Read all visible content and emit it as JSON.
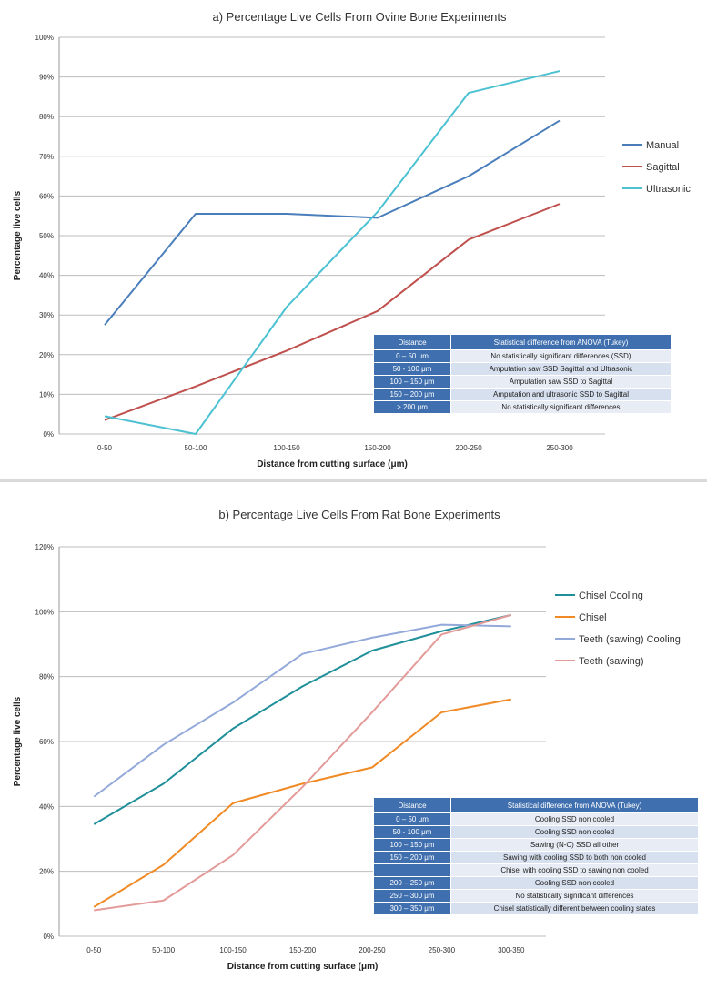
{
  "chart_data": [
    {
      "type": "line",
      "title": "a) Percentage Live Cells From Ovine Bone Experiments",
      "xlabel": "Distance from cutting surface (μm)",
      "ylabel": "Percentage live cells",
      "categories": [
        "0-50",
        "50-100",
        "100-150",
        "150-200",
        "200-250",
        "250-300"
      ],
      "yticks": [
        "0%",
        "10%",
        "20%",
        "30%",
        "40%",
        "50%",
        "60%",
        "70%",
        "80%",
        "90%",
        "100%"
      ],
      "ylim": [
        0,
        100
      ],
      "grid": true,
      "legend_position": "right",
      "series": [
        {
          "name": "Manual",
          "color": "#4a7ebb",
          "values": [
            27.5,
            55.5,
            55.5,
            54.5,
            65,
            79
          ]
        },
        {
          "name": "Sagittal",
          "color": "#c0504d",
          "values": [
            3.5,
            12,
            21,
            31,
            49,
            58
          ]
        },
        {
          "name": "Ultrasonic",
          "color": "#4bc1d2",
          "values": [
            4.5,
            0,
            32,
            56,
            86,
            91.5
          ]
        }
      ],
      "table": {
        "headers": [
          "Distance",
          "Statistical difference from ANOVA (Tukey)"
        ],
        "rows": [
          [
            "0 – 50 μm",
            "No statistically significant differences (SSD)"
          ],
          [
            "50 - 100 μm",
            "Amputation saw SSD Sagittal and Ultrasonic"
          ],
          [
            "100 – 150 μm",
            "Amputation saw SSD to Sagittal"
          ],
          [
            "150 – 200 μm",
            "Amputation and ultrasonic SSD to Sagittal"
          ],
          [
            "> 200 μm",
            "No statistically significant differences"
          ]
        ]
      }
    },
    {
      "type": "line",
      "title": "b) Percentage Live Cells From Rat Bone Experiments",
      "xlabel": "Distance from cutting surface (μm)",
      "ylabel": "Percentage live cells",
      "categories": [
        "0-50",
        "50-100",
        "100-150",
        "150-200",
        "200-250",
        "250-300",
        "300-350"
      ],
      "yticks": [
        "0%",
        "20%",
        "40%",
        "60%",
        "80%",
        "100%",
        "120%"
      ],
      "ylim": [
        0,
        120
      ],
      "grid": true,
      "legend_position": "right",
      "series": [
        {
          "name": "Chisel Cooling",
          "color": "#1f8f9a",
          "values": [
            34.5,
            47,
            64,
            77,
            88,
            94,
            99
          ]
        },
        {
          "name": "Chisel",
          "color": "#f08a24",
          "values": [
            9,
            22,
            41,
            47,
            52,
            69,
            73
          ]
        },
        {
          "name": "Teeth (sawing) Cooling",
          "color": "#93a9da",
          "values": [
            43,
            59,
            72,
            87,
            92,
            96,
            95.5
          ]
        },
        {
          "name": "Teeth (sawing)",
          "color": "#e39b99",
          "values": [
            8,
            11,
            25,
            46,
            69,
            93,
            99
          ]
        }
      ],
      "table": {
        "headers": [
          "Distance",
          "Statistical difference from ANOVA (Tukey)"
        ],
        "rows": [
          [
            "0 – 50 μm",
            "Cooling SSD non cooled"
          ],
          [
            "50 - 100 μm",
            "Cooling SSD non cooled"
          ],
          [
            "100 – 150 μm",
            "Sawing (N-C) SSD all other"
          ],
          [
            "150 – 200 μm",
            "Sawing with cooling SSD to both non cooled"
          ],
          [
            "",
            "Chisel with cooling SSD to sawing non cooled"
          ],
          [
            "200 – 250 μm",
            "Cooling SSD non cooled"
          ],
          [
            "250 – 300 μm",
            "No statistically significant differences"
          ],
          [
            "300 – 350 μm",
            "Chisel statistically different between cooling states"
          ]
        ]
      }
    }
  ]
}
